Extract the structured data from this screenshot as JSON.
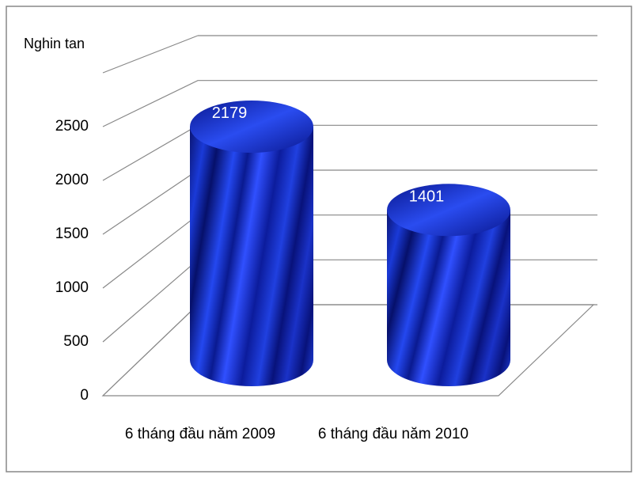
{
  "chart_data": {
    "type": "bar3d-cylinder",
    "y_label": "Nghin tan",
    "categories": [
      "6 tháng đầu năm 2009",
      "6 tháng đầu năm 2010"
    ],
    "values": [
      2179,
      1401
    ],
    "color": "#1226b8",
    "ylim": [
      0,
      3000
    ],
    "yticks": [
      0,
      500,
      1000,
      1500,
      2000,
      2500
    ],
    "grid": true
  }
}
